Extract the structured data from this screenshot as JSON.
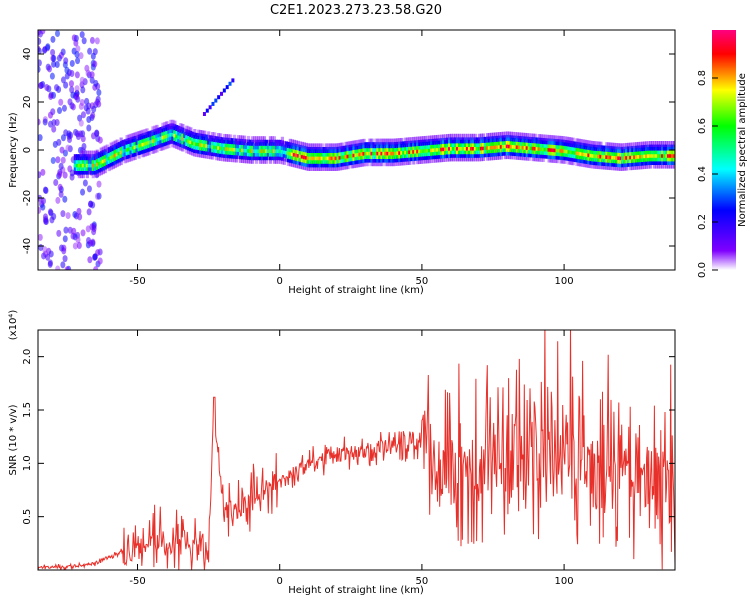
{
  "title": "C2E1.2023.273.23.58.G20",
  "chart_data": [
    {
      "type": "heatmap",
      "xlabel": "Height of straight line (km)",
      "ylabel": "Frequency (Hz)",
      "xlim": [
        -85,
        139
      ],
      "ylim": [
        -50,
        50
      ],
      "xticks": [
        -50,
        0,
        50,
        100
      ],
      "yticks": [
        -40,
        -20,
        0,
        20,
        40
      ],
      "colorbar": {
        "label": "Normalized spectral amplitude",
        "range": [
          0,
          1
        ],
        "ticks": [
          0.0,
          0.2,
          0.4,
          0.6,
          0.8
        ],
        "tick_labels": [
          "0.0",
          "0.2",
          "0.4",
          "0.6",
          "0.8"
        ],
        "colors": [
          "#ffffff",
          "#8000ff",
          "#0000ff",
          "#00ffff",
          "#00ff00",
          "#ffff00",
          "#ff0000",
          "#ff0080"
        ]
      },
      "spectral_ridge": {
        "height_km": [
          -65,
          -55,
          -45,
          -38,
          -30,
          -20,
          -10,
          0,
          10,
          20,
          30,
          40,
          50,
          60,
          70,
          80,
          90,
          100,
          110,
          120,
          130,
          138
        ],
        "frequency_hz": [
          -6,
          0,
          4,
          7,
          3,
          1,
          0,
          0,
          -3,
          -3,
          -1,
          -1,
          0,
          1,
          1,
          2,
          1,
          0,
          -2,
          -3,
          -2,
          -2
        ]
      }
    },
    {
      "type": "line",
      "xlabel": "Height of straight line (km)",
      "ylabel": "SNR (10 * v/v)",
      "y_multiplier": "(x10⁴)",
      "xlim": [
        -85,
        139
      ],
      "ylim": [
        0,
        2.25
      ],
      "xticks": [
        -50,
        0,
        50,
        100
      ],
      "yticks": [
        0.5,
        1.0,
        1.5,
        2.0
      ],
      "ytick_labels": [
        "0.5",
        "1.0",
        "1.5",
        "2.0"
      ],
      "color": "#e8302a",
      "x": [
        -85,
        -75,
        -65,
        -60,
        -55,
        -50,
        -45,
        -40,
        -35,
        -30,
        -25,
        -23,
        -20,
        -15,
        -10,
        -5,
        0,
        5,
        10,
        15,
        20,
        25,
        30,
        35,
        40,
        45,
        50,
        53,
        55,
        57,
        60,
        65,
        70,
        75,
        80,
        85,
        90,
        95,
        100,
        105,
        110,
        115,
        120,
        125,
        130,
        135,
        139
      ],
      "y": [
        0.02,
        0.03,
        0.06,
        0.12,
        0.18,
        0.25,
        0.32,
        0.3,
        0.25,
        0.22,
        0.2,
        1.6,
        0.5,
        0.55,
        0.68,
        0.78,
        0.82,
        0.9,
        0.98,
        1.04,
        1.08,
        1.1,
        1.12,
        1.14,
        1.16,
        1.18,
        1.18,
        1.2,
        0.8,
        1.0,
        0.9,
        0.85,
        0.95,
        1.0,
        1.05,
        1.1,
        1.05,
        1.0,
        0.95,
        0.95,
        0.9,
        0.85,
        0.9,
        0.85,
        0.8,
        0.75,
        0.7
      ]
    }
  ]
}
